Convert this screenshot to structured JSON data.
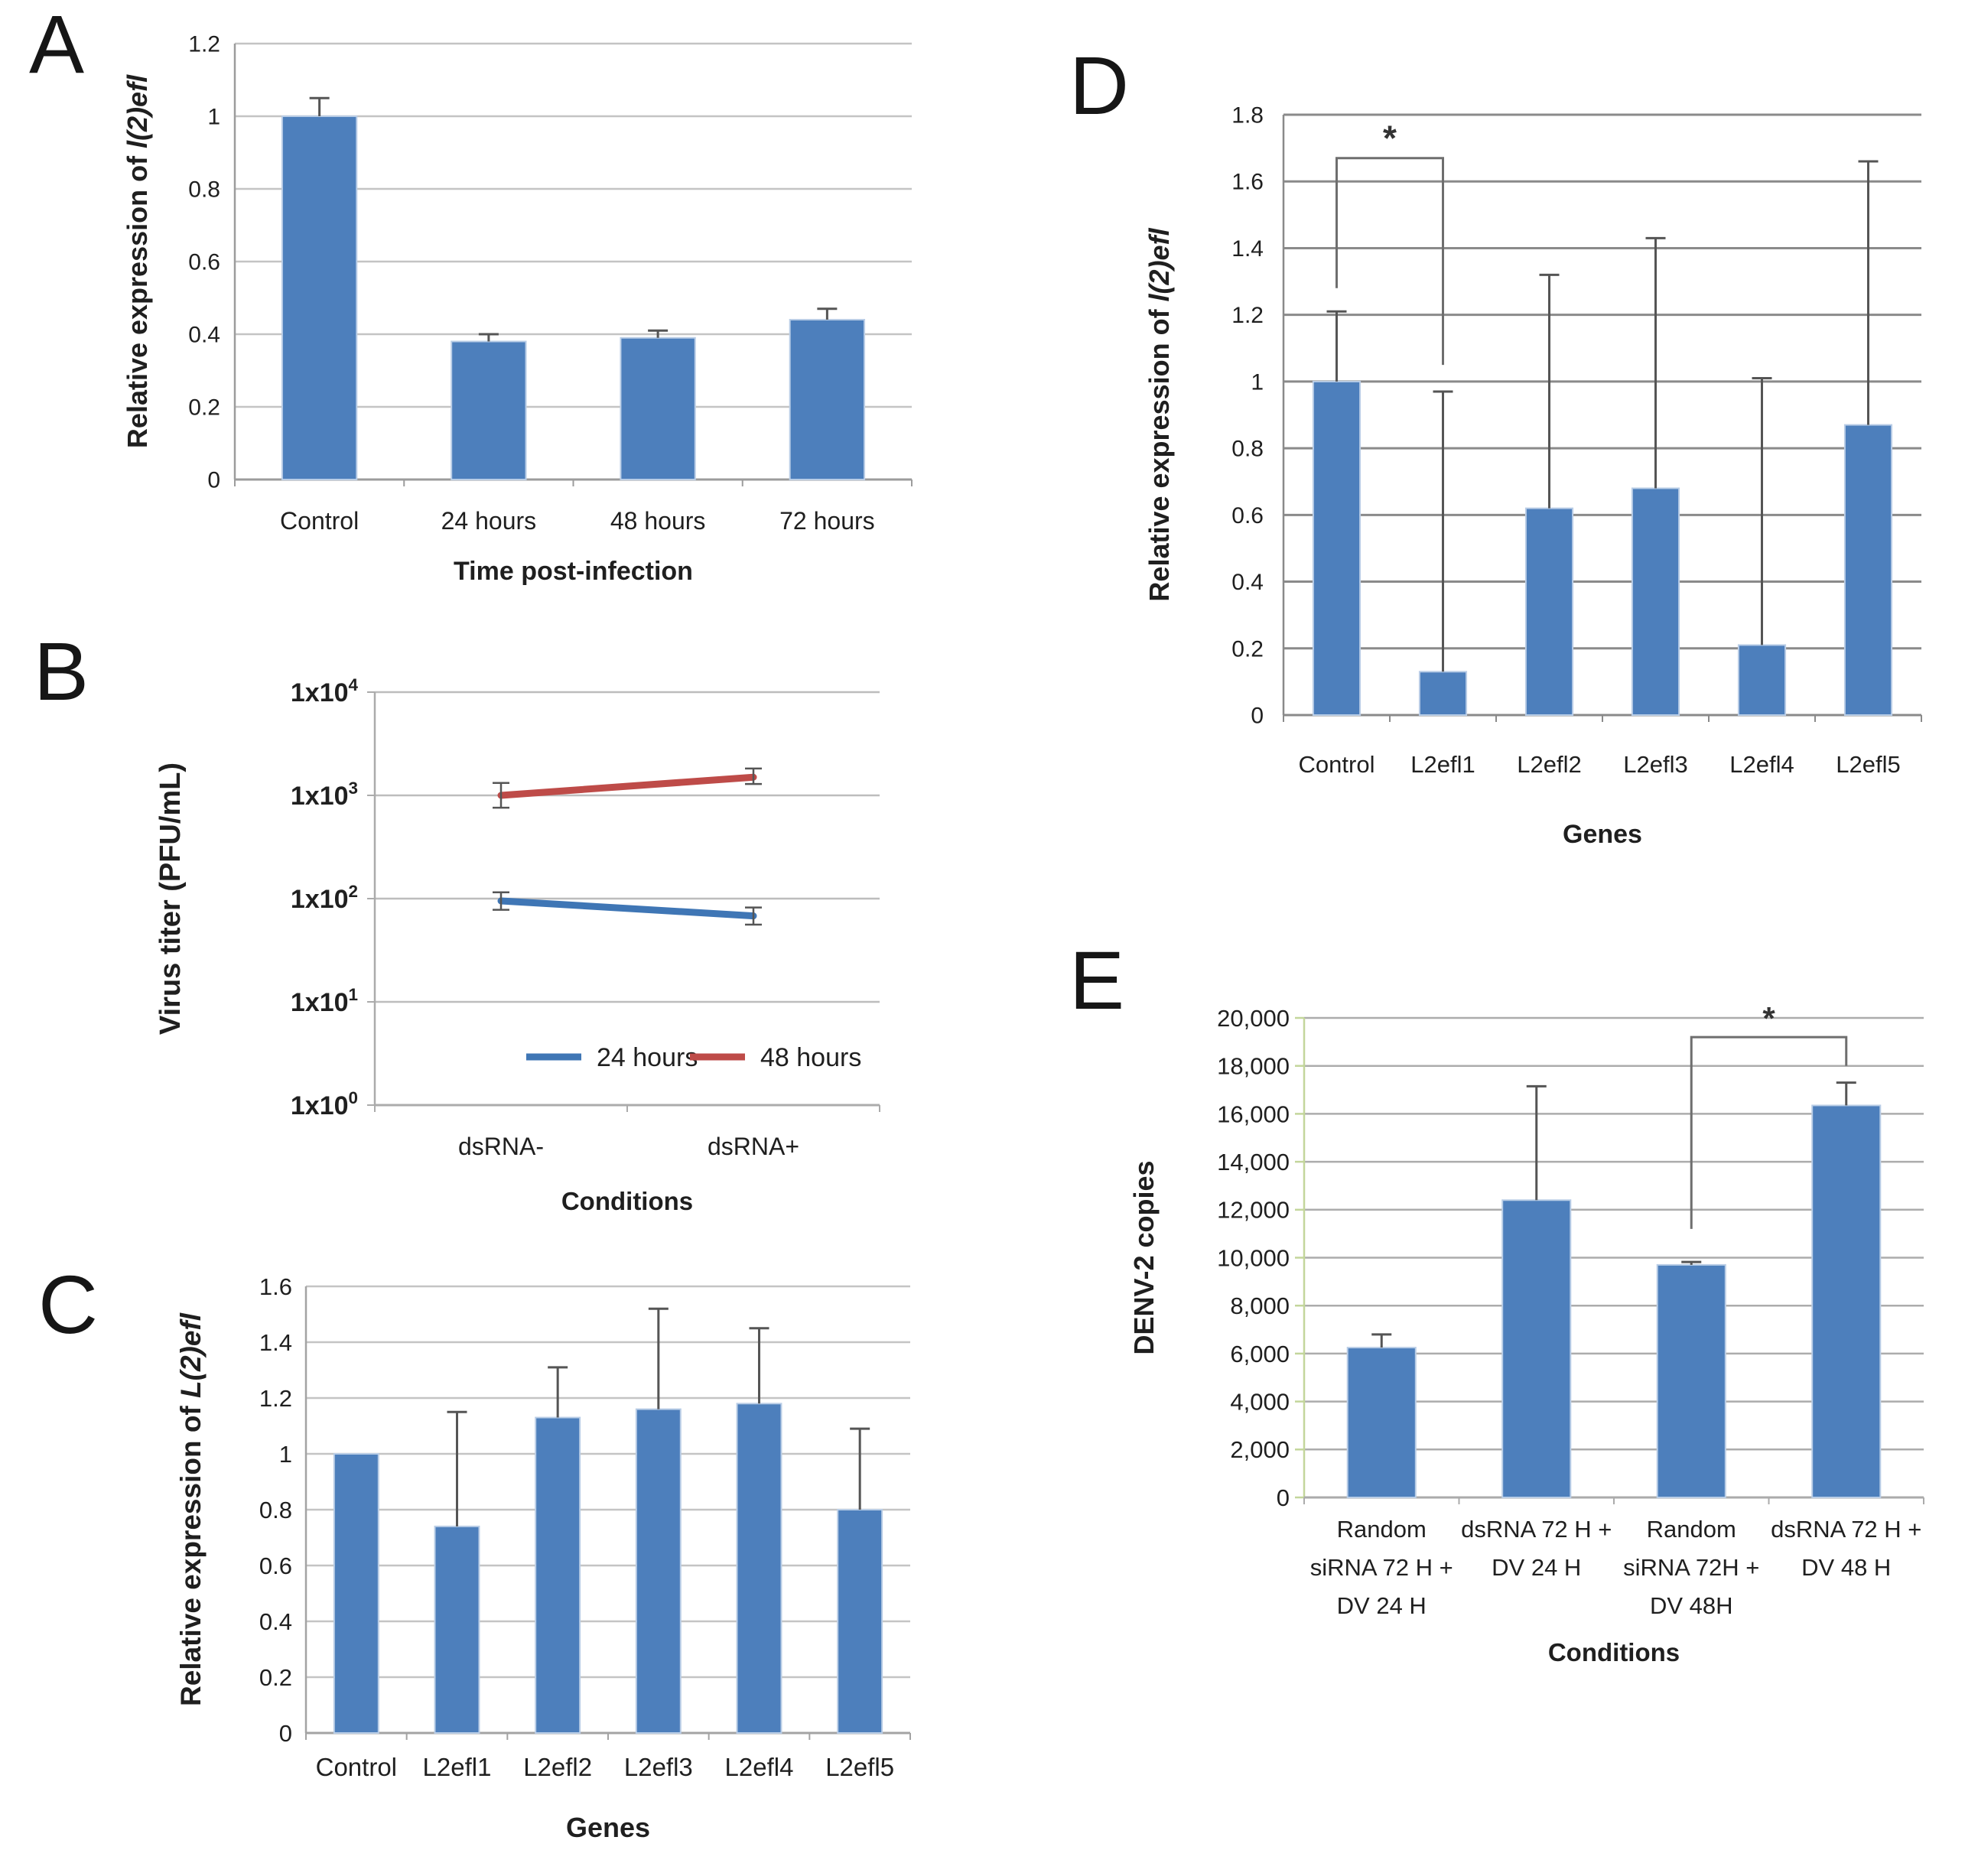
{
  "figure": {
    "panels": [
      {
        "letter": "A"
      },
      {
        "letter": "B"
      },
      {
        "letter": "C"
      },
      {
        "letter": "D"
      },
      {
        "letter": "E"
      }
    ]
  },
  "colors": {
    "bar_fill": "#4D7FBC",
    "bar_edge": "#B9CDE6",
    "error_bar": "#555555",
    "series_blue": "#3F76B5",
    "series_red": "#BE4B48",
    "green_axis": "#C3D69B",
    "bracket": "#6E6E6E",
    "text": "#1F1F1F"
  },
  "chart_data": [
    {
      "panel": "A",
      "type": "bar",
      "categories": [
        "Control",
        "24 hours",
        "48 hours",
        "72 hours"
      ],
      "values": [
        1.0,
        0.38,
        0.39,
        0.44
      ],
      "errors_up": [
        0.05,
        0.02,
        0.02,
        0.03
      ],
      "ylim": [
        0,
        1.2
      ],
      "ystep": 0.2,
      "grid": true,
      "ylabel_prefix": "Relative expression of ",
      "ylabel_italic": "l(2)efl",
      "xlabel": "Time post-infection"
    },
    {
      "panel": "B",
      "type": "line",
      "categories": [
        "dsRNA-",
        "dsRNA+"
      ],
      "series": [
        {
          "name": "24 hours",
          "color_key": "series_blue",
          "values": [
            95,
            68
          ],
          "err_lo": [
            78,
            56
          ],
          "err_hi": [
            115,
            82
          ]
        },
        {
          "name": "48 hours",
          "color_key": "series_red",
          "values": [
            1000,
            1500
          ],
          "err_lo": [
            760,
            1290
          ],
          "err_hi": [
            1320,
            1820
          ]
        }
      ],
      "yscale": "log10",
      "ylim_exponents": [
        0,
        4
      ],
      "ytick_mantissa": "1x10",
      "grid": true,
      "legend_position": "bottom-inside",
      "ylabel_prefix": "Virus titer (PFU/mL)",
      "ylabel_italic": "",
      "xlabel": "Conditions"
    },
    {
      "panel": "C",
      "type": "bar",
      "categories": [
        "Control",
        "L2efl1",
        "L2efl2",
        "L2efl3",
        "L2efl4",
        "L2efl5"
      ],
      "values": [
        1.0,
        0.74,
        1.13,
        1.16,
        1.18,
        0.8
      ],
      "errors_up": [
        0,
        0.41,
        0.18,
        0.36,
        0.27,
        0.29
      ],
      "ylim": [
        0,
        1.6
      ],
      "ystep": 0.2,
      "grid": true,
      "ylabel_prefix": "Relative expression of ",
      "ylabel_italic": "L(2)efl",
      "xlabel": "Genes"
    },
    {
      "panel": "D",
      "type": "bar",
      "categories": [
        "Control",
        "L2efl1",
        "L2efl2",
        "L2efl3",
        "L2efl4",
        "L2efl5"
      ],
      "values": [
        1.0,
        0.13,
        0.62,
        0.68,
        0.21,
        0.87
      ],
      "errors_up": [
        0.21,
        0.84,
        0.7,
        0.75,
        0.8,
        0.79
      ],
      "ylim": [
        0,
        1.8
      ],
      "ystep": 0.2,
      "grid": true,
      "ylabel_prefix": "Relative expression of ",
      "ylabel_italic": "l(2)efl",
      "xlabel": "Genes",
      "significance": {
        "x1": 0,
        "x2": 1,
        "bar_y": 1.67,
        "leg1_y": 1.28,
        "leg2_y": 1.05,
        "label": "*"
      }
    },
    {
      "panel": "E",
      "type": "bar",
      "categories": [
        [
          "Random",
          "siRNA 72 H +",
          "DV 24 H"
        ],
        [
          "dsRNA 72 H +",
          "DV 24 H"
        ],
        [
          "Random",
          "siRNA 72H +",
          "DV 48H"
        ],
        [
          "dsRNA 72 H +",
          "DV 48 H"
        ]
      ],
      "values": [
        6250,
        12400,
        9700,
        16350
      ],
      "errors_up": [
        550,
        4750,
        120,
        950
      ],
      "ylim": [
        0,
        20000
      ],
      "ystep": 2000,
      "thousands": true,
      "grid": true,
      "ylabel_prefix": "DENV-2 copies",
      "ylabel_italic": "",
      "xlabel": "Conditions",
      "significance": {
        "x1": 2,
        "x2": 3,
        "bar_y": 19200,
        "leg1_y": 11200,
        "leg2_y": 18000,
        "label": "*"
      }
    }
  ]
}
